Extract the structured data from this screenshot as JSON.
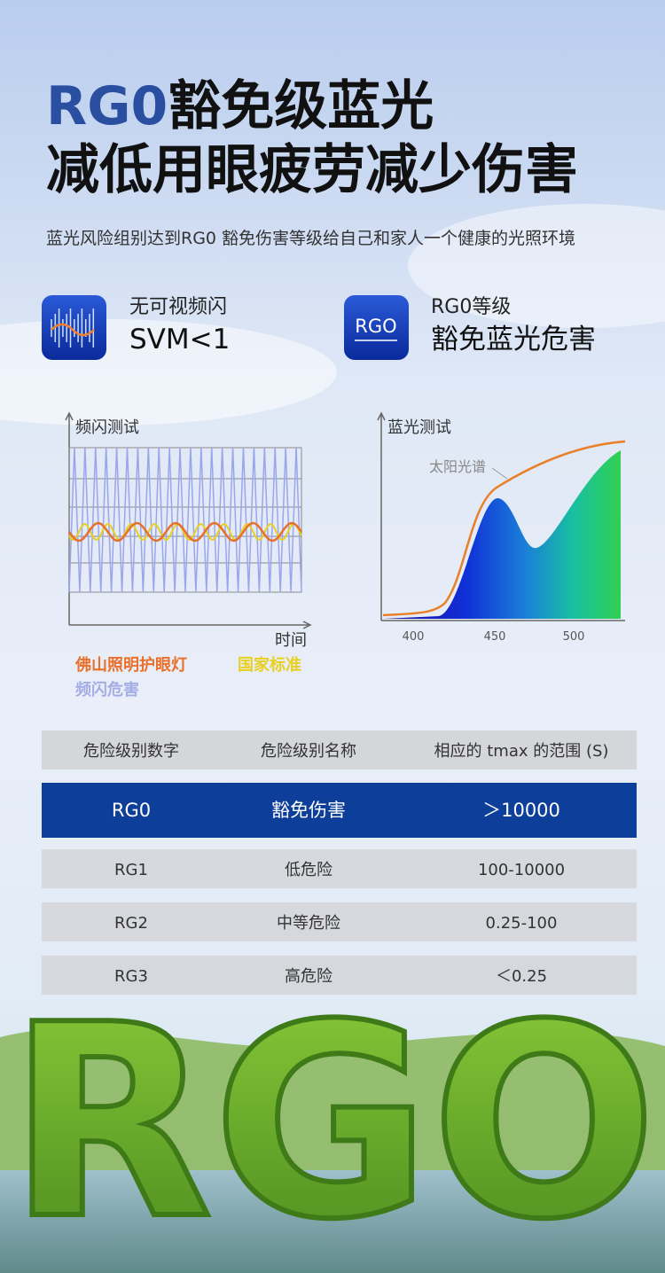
{
  "header": {
    "title_highlight": "RG0",
    "title_rest": "豁免级蓝光",
    "title_line2": "减低用眼疲劳减少伤害",
    "subtitle": "蓝光风险组别达到RG0 豁免伤害等级给自己和家人一个健康的光照环境"
  },
  "features": [
    {
      "label": "无可视频闪",
      "value": "SVM<1"
    },
    {
      "icon_text": "RGO",
      "label": "RG0等级",
      "value": "豁免蓝光危害"
    }
  ],
  "flicker_chart": {
    "title": "频闪测试",
    "x_label": "时间",
    "legend": [
      "佛山照明护眼灯",
      "国家标准",
      "频闪危害"
    ]
  },
  "spectrum_chart": {
    "title": "蓝光测试",
    "annotation": "太阳光谱",
    "xticks": [
      "400",
      "450",
      "500"
    ]
  },
  "table": {
    "header": [
      "危险级别数字",
      "危险级别名称",
      "相应的 tmax 的范围 (S)"
    ],
    "rows": [
      [
        "RG0",
        "豁免伤害",
        "＞10000"
      ],
      [
        "RG1",
        "低危险",
        "100-10000"
      ],
      [
        "RG2",
        "中等危险",
        "0.25-100"
      ],
      [
        "RG3",
        "高危险",
        "＜0.25"
      ]
    ]
  },
  "hero_text": "RGO"
}
